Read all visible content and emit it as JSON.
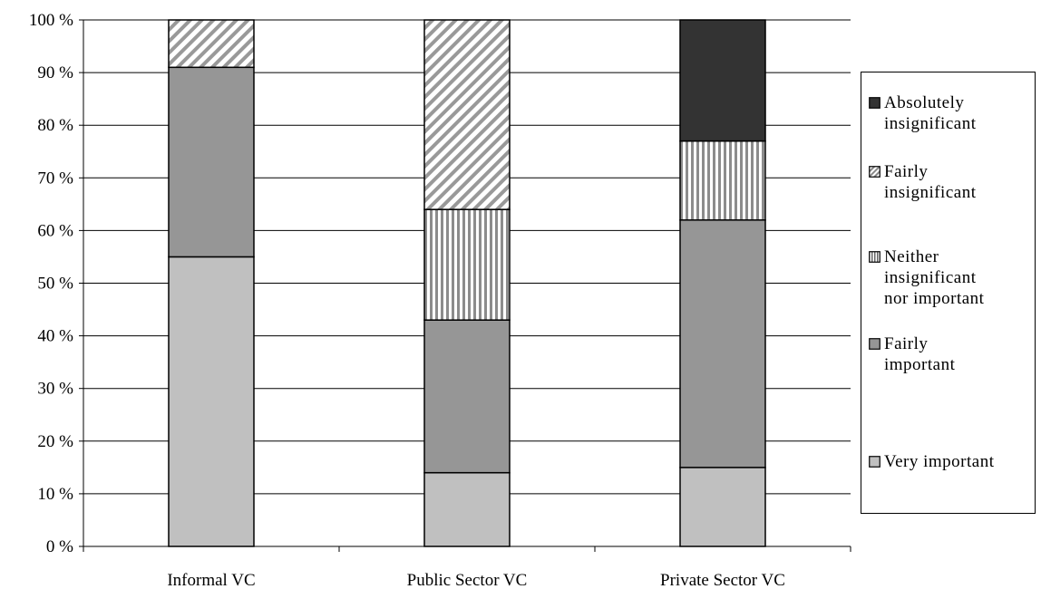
{
  "chart_data": {
    "type": "bar",
    "stacked": true,
    "categories": [
      "Informal VC",
      "Public Sector VC",
      "Private Sector VC"
    ],
    "series": [
      {
        "name": "Very important",
        "values": [
          55,
          14,
          15
        ],
        "color": "#c0c0c0",
        "pattern": "solid"
      },
      {
        "name": "Fairly important",
        "values": [
          36,
          29,
          47
        ],
        "color": "#969696",
        "pattern": "solid"
      },
      {
        "name": "Neither insignificant nor important",
        "values": [
          0,
          21,
          15
        ],
        "color": "#ffffff",
        "pattern": "vertical-stripes"
      },
      {
        "name": "Fairly insignificant",
        "values": [
          9,
          36,
          0
        ],
        "color": "#ffffff",
        "pattern": "diagonal-stripes"
      },
      {
        "name": "Absolutely insignificant",
        "values": [
          0,
          0,
          23
        ],
        "color": "#333333",
        "pattern": "solid"
      }
    ],
    "yticks": [
      "0 %",
      "10 %",
      "20 %",
      "30 %",
      "40 %",
      "50 %",
      "60 %",
      "70 %",
      "80 %",
      "90 %",
      "100 %"
    ],
    "ylim": [
      0,
      100
    ],
    "grid": true,
    "legend_position": "right",
    "legend": [
      {
        "lines": [
          "Absolutely",
          "insignificant"
        ],
        "swatch": "solid-dark"
      },
      {
        "lines": [
          "Fairly",
          "insignificant"
        ],
        "swatch": "diagonal-stripes"
      },
      {
        "lines": [
          "Neither",
          "insignificant",
          "nor important"
        ],
        "swatch": "vertical-stripes"
      },
      {
        "lines": [
          "Fairly",
          "important"
        ],
        "swatch": "solid-mid"
      },
      {
        "lines": [
          "Very important"
        ],
        "swatch": "solid-light"
      }
    ]
  }
}
